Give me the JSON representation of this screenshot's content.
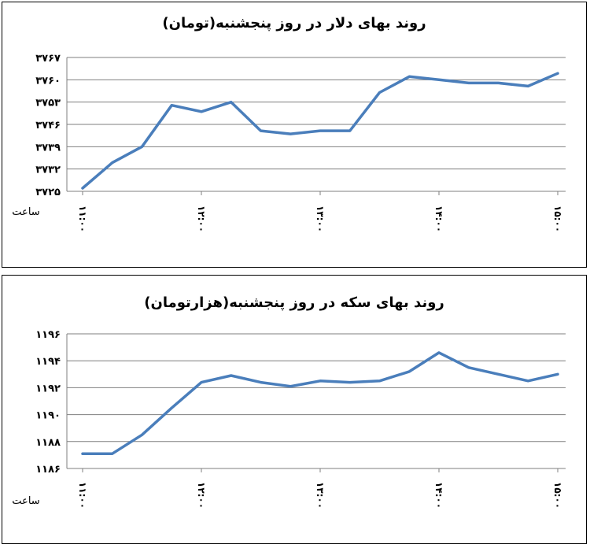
{
  "chart_data": [
    {
      "type": "line",
      "title": "روند بهای دلار در روز پنجشنبه(تومان)",
      "xlabel": "ساعت",
      "ylabel": "",
      "ylim": [
        3725,
        3767
      ],
      "y_ticks": [
        "۳۷۶۷",
        "۳۷۶۰",
        "۳۷۵۳",
        "۳۷۴۶",
        "۳۷۳۹",
        "۳۷۳۲",
        "۳۷۲۵"
      ],
      "y_tick_values": [
        3767,
        3760,
        3753,
        3746,
        3739,
        3732,
        3725
      ],
      "x_ticks": [
        "۱۱:۰۰",
        "۱۲:۰۰",
        "۱۳:۰۰",
        "۱۴:۰۰",
        "۱۵:۰۰"
      ],
      "x_tick_index": [
        0,
        4,
        8,
        12,
        16
      ],
      "grid": true,
      "color": "#4a7ebb",
      "series": [
        {
          "values": [
            3726,
            3734,
            3739,
            3752,
            3750,
            3753,
            3744,
            3743,
            3744,
            3744,
            3756,
            3761,
            3760,
            3759,
            3759,
            3758,
            3762
          ]
        }
      ]
    },
    {
      "type": "line",
      "title": "روند بهای سکه در روز پنجشنبه(هزارتومان)",
      "xlabel": "ساعت",
      "ylabel": "",
      "ylim": [
        1186,
        1196
      ],
      "y_ticks": [
        "۱۱۹۶",
        "۱۱۹۴",
        "۱۱۹۲",
        "۱۱۹۰",
        "۱۱۸۸",
        "۱۱۸۶"
      ],
      "y_tick_values": [
        1196,
        1194,
        1192,
        1190,
        1188,
        1186
      ],
      "x_ticks": [
        "۱۱:۰۰",
        "۱۲:۰۰",
        "۱۳:۰۰",
        "۱۴:۰۰",
        "۱۵:۰۰"
      ],
      "x_tick_index": [
        0,
        4,
        8,
        12,
        16
      ],
      "grid": true,
      "color": "#4a7ebb",
      "series": [
        {
          "values": [
            1187.1,
            1187.1,
            1188.5,
            1190.5,
            1192.4,
            1192.9,
            1192.4,
            1192.1,
            1192.5,
            1192.4,
            1192.5,
            1193.2,
            1194.6,
            1193.5,
            1193.0,
            1192.5,
            1193.0
          ]
        }
      ]
    }
  ]
}
